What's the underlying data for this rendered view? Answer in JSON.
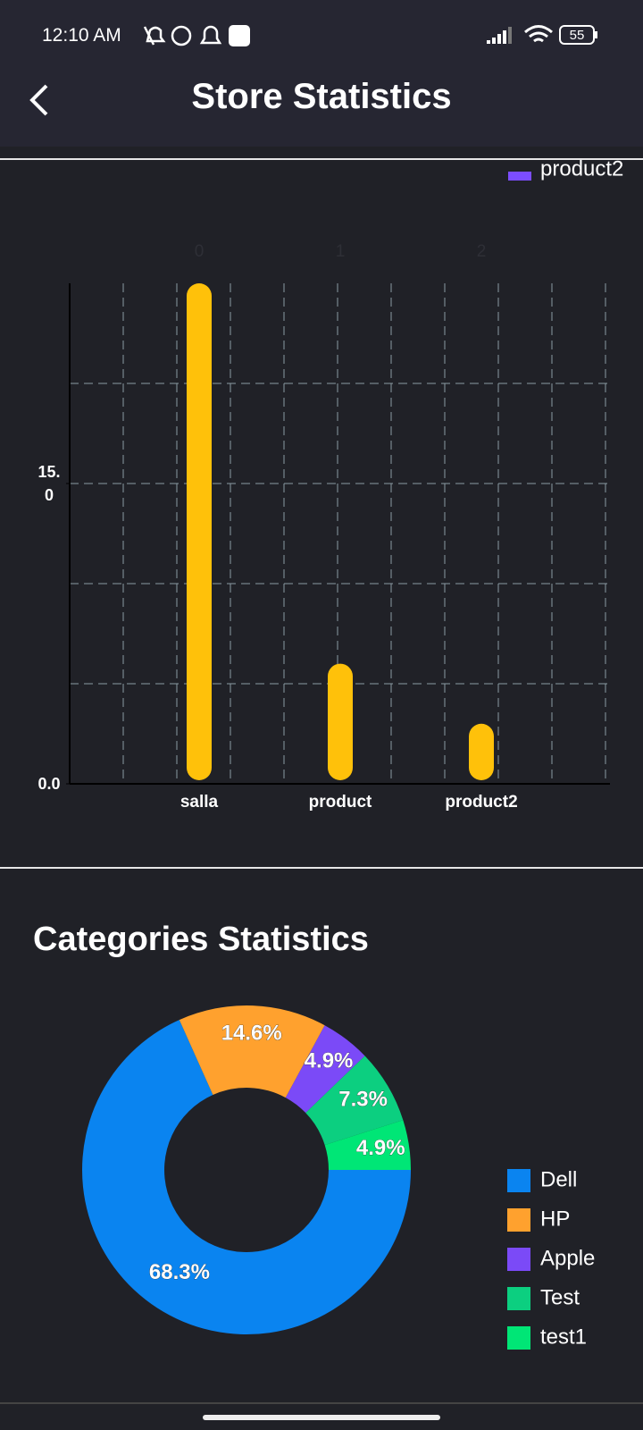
{
  "status_bar": {
    "time": "12:10 AM",
    "battery": "55"
  },
  "header": {
    "title": "Store Statistics"
  },
  "chart_data": [
    {
      "type": "bar",
      "categories": [
        "salla",
        "product",
        "product2"
      ],
      "values": [
        25,
        6,
        3
      ],
      "color": "#ffc10a",
      "top_labels": [
        "0",
        "1",
        "2"
      ],
      "legend": [
        {
          "name": "product2",
          "color": "#7c4dff"
        }
      ],
      "ylim": [
        0,
        25
      ],
      "yticks": [
        {
          "value": 0,
          "label": "0.0"
        },
        {
          "value": 15,
          "label": "15.0"
        }
      ],
      "grid_lines": [
        5,
        10,
        15,
        20
      ],
      "grid": true
    },
    {
      "type": "pie",
      "title": "Categories Statistics",
      "donut": true,
      "categories": [
        "Dell",
        "HP",
        "Apple",
        "Test",
        "test1"
      ],
      "values": [
        68.3,
        14.6,
        4.9,
        7.3,
        4.9
      ],
      "value_labels": [
        "68.3%",
        "14.6%",
        "4.9%",
        "7.3%",
        "4.9%"
      ],
      "colors": [
        "#0a84f0",
        "#ffa12e",
        "#7b4af7",
        "#0ccf80",
        "#00e676"
      ]
    }
  ]
}
